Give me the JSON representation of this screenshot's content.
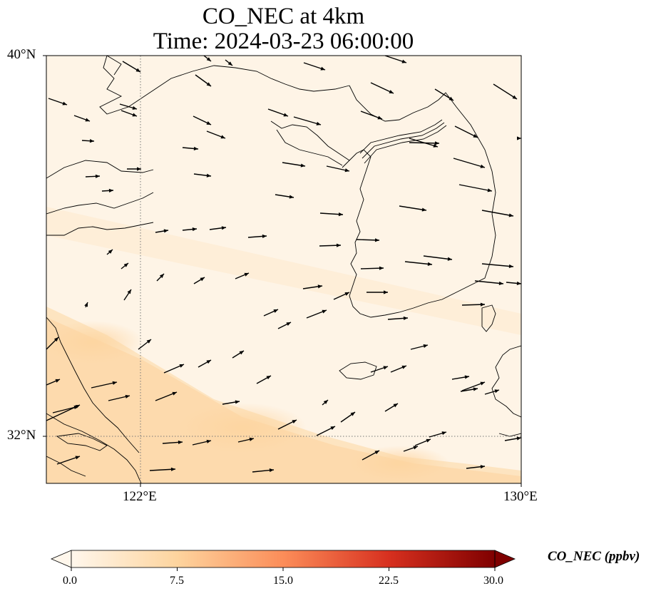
{
  "title": {
    "line1": "CO_NEC at 4km",
    "line2": "Time: 2024-03-23 06:00:00"
  },
  "map": {
    "lon_range": [
      120,
      130
    ],
    "lat_range": [
      31,
      40
    ],
    "lat_ticks": [
      "40°N",
      "32°N"
    ],
    "lon_ticks": [
      "122°E",
      "130°E"
    ],
    "gridlines": {
      "lat": 32,
      "lon": 122,
      "style": "dotted"
    },
    "field": "CO_NEC",
    "wind_vectors": true
  },
  "colorbar": {
    "label": "CO_NEC (ppbv)",
    "ticks": [
      "0.0",
      "7.5",
      "15.0",
      "22.5",
      "30.0"
    ],
    "vmin": 0.0,
    "vmax": 30.0,
    "extend": "both",
    "colormap": "OrRd",
    "colors": [
      "#fff7ec",
      "#fdd49e",
      "#fc8d59",
      "#d7301f",
      "#7f0000"
    ]
  }
}
